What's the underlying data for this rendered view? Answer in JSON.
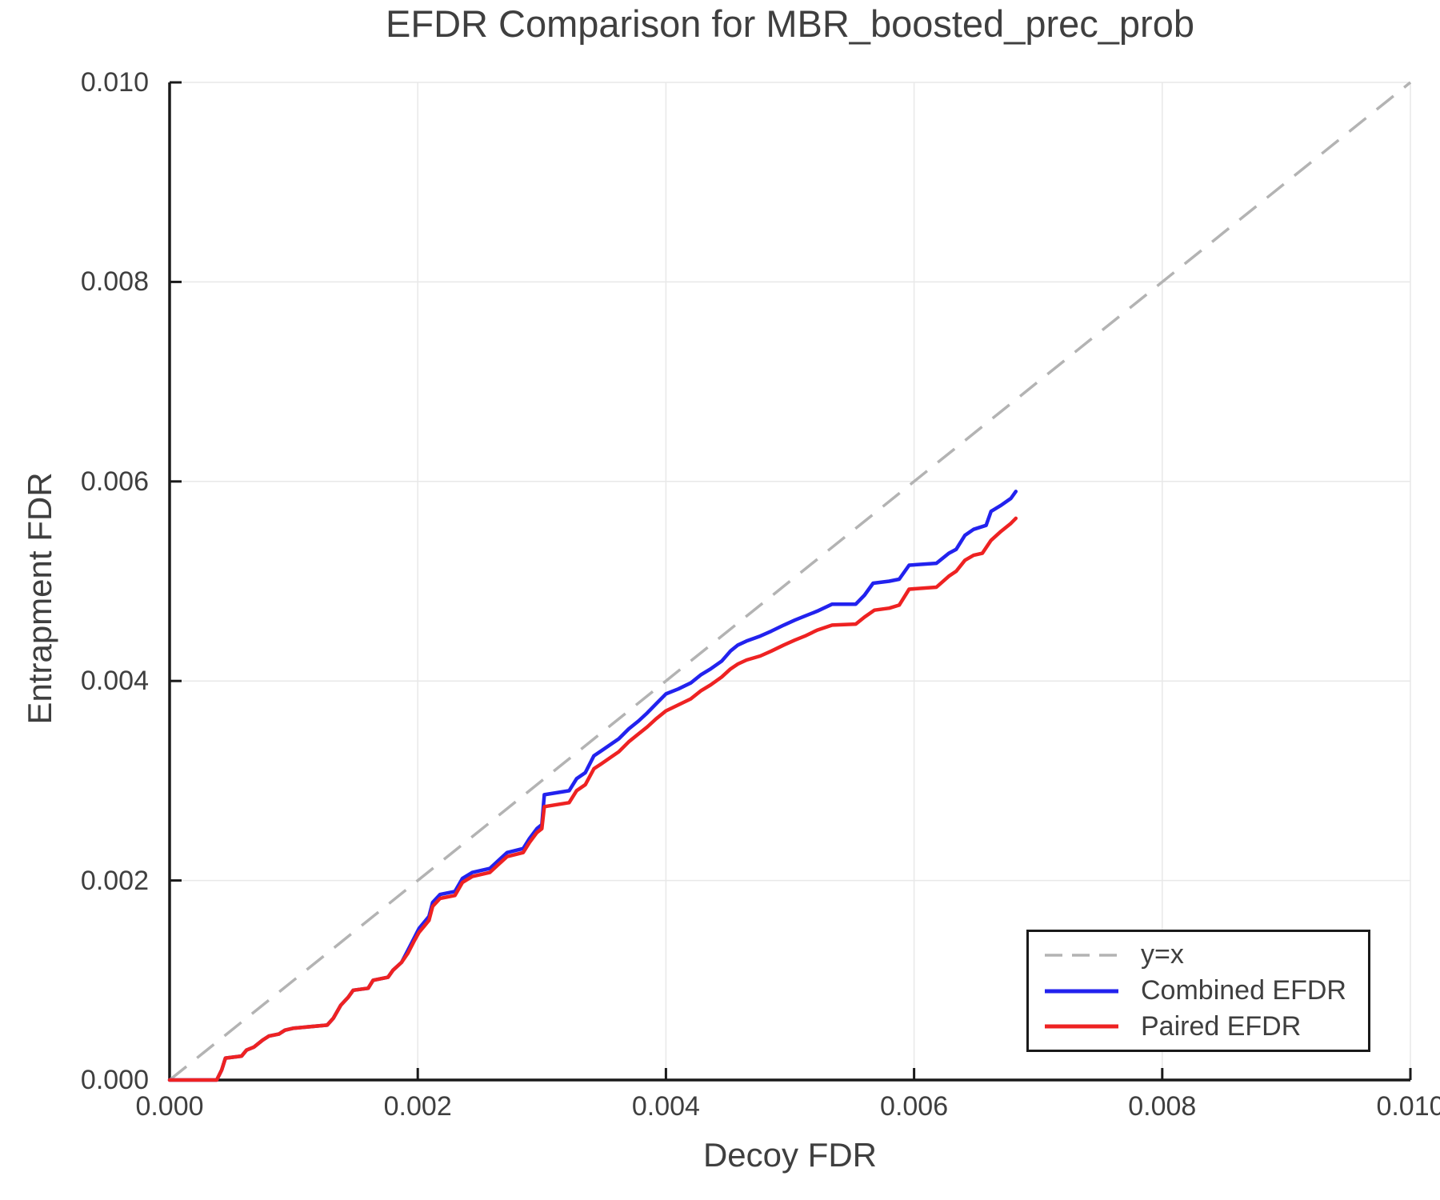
{
  "chart_data": {
    "type": "line",
    "title": "EFDR Comparison for MBR_boosted_prec_prob",
    "xlabel": "Decoy FDR",
    "ylabel": "Entrapment FDR",
    "xlim": [
      0.0,
      0.01
    ],
    "ylim": [
      0.0,
      0.01
    ],
    "x_ticks": [
      0.0,
      0.002,
      0.004,
      0.006,
      0.008,
      0.01
    ],
    "x_tick_labels": [
      "0.000",
      "0.002",
      "0.004",
      "0.006",
      "0.008",
      "0.010"
    ],
    "y_ticks": [
      0.0,
      0.002,
      0.004,
      0.006,
      0.008,
      0.01
    ],
    "y_tick_labels": [
      "0.000",
      "0.002",
      "0.004",
      "0.006",
      "0.008",
      "0.010"
    ],
    "grid": true,
    "legend_position": "lower right",
    "reference_line": {
      "label": "y=x",
      "style": "dashed",
      "color": "#b3b3b3",
      "from": [
        0.0,
        0.0
      ],
      "to": [
        0.01,
        0.01
      ]
    },
    "series": [
      {
        "name": "Combined EFDR",
        "color": "#2222ee",
        "points": [
          [
            0.0,
            0.0
          ],
          [
            0.00038,
            0.0
          ],
          [
            0.00042,
            0.0001
          ],
          [
            0.00045,
            0.00022
          ],
          [
            0.00058,
            0.00024
          ],
          [
            0.00062,
            0.0003
          ],
          [
            0.00068,
            0.00033
          ],
          [
            0.00075,
            0.0004
          ],
          [
            0.0008,
            0.00044
          ],
          [
            0.00088,
            0.00046
          ],
          [
            0.00093,
            0.0005
          ],
          [
            0.001,
            0.00052
          ],
          [
            0.00127,
            0.00055
          ],
          [
            0.00132,
            0.00062
          ],
          [
            0.00138,
            0.00075
          ],
          [
            0.00144,
            0.00083
          ],
          [
            0.00148,
            0.0009
          ],
          [
            0.0016,
            0.00092
          ],
          [
            0.00164,
            0.001
          ],
          [
            0.00176,
            0.00103
          ],
          [
            0.0018,
            0.0011
          ],
          [
            0.00187,
            0.00118
          ],
          [
            0.00192,
            0.0013
          ],
          [
            0.00197,
            0.00142
          ],
          [
            0.00201,
            0.00152
          ],
          [
            0.00205,
            0.00158
          ],
          [
            0.00209,
            0.00164
          ],
          [
            0.00212,
            0.00178
          ],
          [
            0.00218,
            0.00186
          ],
          [
            0.0023,
            0.00189
          ],
          [
            0.00236,
            0.00202
          ],
          [
            0.00244,
            0.00208
          ],
          [
            0.00258,
            0.00212
          ],
          [
            0.00265,
            0.0022
          ],
          [
            0.00272,
            0.00228
          ],
          [
            0.00285,
            0.00232
          ],
          [
            0.0029,
            0.00242
          ],
          [
            0.00296,
            0.00252
          ],
          [
            0.003,
            0.00256
          ],
          [
            0.00302,
            0.00286
          ],
          [
            0.00322,
            0.0029
          ],
          [
            0.00328,
            0.00302
          ],
          [
            0.00335,
            0.00308
          ],
          [
            0.00342,
            0.00325
          ],
          [
            0.00348,
            0.0033
          ],
          [
            0.00355,
            0.00336
          ],
          [
            0.00362,
            0.00342
          ],
          [
            0.0037,
            0.00352
          ],
          [
            0.00378,
            0.0036
          ],
          [
            0.00385,
            0.00368
          ],
          [
            0.00392,
            0.00377
          ],
          [
            0.004,
            0.00387
          ],
          [
            0.0041,
            0.00392
          ],
          [
            0.0042,
            0.00398
          ],
          [
            0.00428,
            0.00406
          ],
          [
            0.00436,
            0.00412
          ],
          [
            0.00445,
            0.0042
          ],
          [
            0.00452,
            0.0043
          ],
          [
            0.00458,
            0.00436
          ],
          [
            0.00465,
            0.0044
          ],
          [
            0.00476,
            0.00445
          ],
          [
            0.00485,
            0.0045
          ],
          [
            0.00495,
            0.00456
          ],
          [
            0.00504,
            0.00461
          ],
          [
            0.00512,
            0.00465
          ],
          [
            0.00522,
            0.0047
          ],
          [
            0.00534,
            0.00477
          ],
          [
            0.00553,
            0.00477
          ],
          [
            0.0056,
            0.00486
          ],
          [
            0.00567,
            0.00498
          ],
          [
            0.0058,
            0.005
          ],
          [
            0.00588,
            0.00502
          ],
          [
            0.00596,
            0.00516
          ],
          [
            0.00618,
            0.00518
          ],
          [
            0.00628,
            0.00528
          ],
          [
            0.00634,
            0.00532
          ],
          [
            0.00641,
            0.00546
          ],
          [
            0.00648,
            0.00552
          ],
          [
            0.00658,
            0.00556
          ],
          [
            0.00662,
            0.0057
          ],
          [
            0.0067,
            0.00576
          ],
          [
            0.00678,
            0.00583
          ],
          [
            0.00682,
            0.0059
          ]
        ]
      },
      {
        "name": "Paired EFDR",
        "color": "#ee2222",
        "points": [
          [
            0.0,
            0.0
          ],
          [
            0.00038,
            0.0
          ],
          [
            0.00042,
            0.0001
          ],
          [
            0.00045,
            0.00022
          ],
          [
            0.00058,
            0.00024
          ],
          [
            0.00062,
            0.0003
          ],
          [
            0.00068,
            0.00033
          ],
          [
            0.00075,
            0.0004
          ],
          [
            0.0008,
            0.00044
          ],
          [
            0.00088,
            0.00046
          ],
          [
            0.00093,
            0.0005
          ],
          [
            0.001,
            0.00052
          ],
          [
            0.00127,
            0.00055
          ],
          [
            0.00132,
            0.00062
          ],
          [
            0.00138,
            0.00075
          ],
          [
            0.00144,
            0.00083
          ],
          [
            0.00148,
            0.0009
          ],
          [
            0.0016,
            0.00092
          ],
          [
            0.00164,
            0.001
          ],
          [
            0.00176,
            0.00103
          ],
          [
            0.0018,
            0.0011
          ],
          [
            0.00187,
            0.00118
          ],
          [
            0.00192,
            0.00127
          ],
          [
            0.00197,
            0.00139
          ],
          [
            0.00201,
            0.00148
          ],
          [
            0.00205,
            0.00154
          ],
          [
            0.00209,
            0.0016
          ],
          [
            0.00212,
            0.00174
          ],
          [
            0.00218,
            0.00182
          ],
          [
            0.0023,
            0.00185
          ],
          [
            0.00236,
            0.00198
          ],
          [
            0.00244,
            0.00204
          ],
          [
            0.00258,
            0.00208
          ],
          [
            0.00265,
            0.00216
          ],
          [
            0.00272,
            0.00224
          ],
          [
            0.00285,
            0.00228
          ],
          [
            0.0029,
            0.00238
          ],
          [
            0.00296,
            0.00248
          ],
          [
            0.003,
            0.00252
          ],
          [
            0.00302,
            0.00274
          ],
          [
            0.00322,
            0.00278
          ],
          [
            0.00328,
            0.0029
          ],
          [
            0.00335,
            0.00296
          ],
          [
            0.00342,
            0.00312
          ],
          [
            0.00348,
            0.00317
          ],
          [
            0.00355,
            0.00323
          ],
          [
            0.00362,
            0.00329
          ],
          [
            0.0037,
            0.00339
          ],
          [
            0.00378,
            0.00347
          ],
          [
            0.00385,
            0.00354
          ],
          [
            0.00392,
            0.00362
          ],
          [
            0.004,
            0.0037
          ],
          [
            0.0041,
            0.00376
          ],
          [
            0.0042,
            0.00382
          ],
          [
            0.00428,
            0.0039
          ],
          [
            0.00436,
            0.00396
          ],
          [
            0.00445,
            0.00404
          ],
          [
            0.00452,
            0.00412
          ],
          [
            0.00458,
            0.00417
          ],
          [
            0.00465,
            0.00421
          ],
          [
            0.00476,
            0.00425
          ],
          [
            0.00485,
            0.0043
          ],
          [
            0.00495,
            0.00436
          ],
          [
            0.00504,
            0.00441
          ],
          [
            0.00512,
            0.00445
          ],
          [
            0.00522,
            0.00451
          ],
          [
            0.00534,
            0.00456
          ],
          [
            0.00553,
            0.00457
          ],
          [
            0.0056,
            0.00464
          ],
          [
            0.00568,
            0.00471
          ],
          [
            0.0058,
            0.00473
          ],
          [
            0.00588,
            0.00476
          ],
          [
            0.00596,
            0.00492
          ],
          [
            0.00618,
            0.00494
          ],
          [
            0.00628,
            0.00505
          ],
          [
            0.00634,
            0.0051
          ],
          [
            0.00641,
            0.00521
          ],
          [
            0.00648,
            0.00526
          ],
          [
            0.00655,
            0.00528
          ],
          [
            0.00662,
            0.00541
          ],
          [
            0.0067,
            0.0055
          ],
          [
            0.00678,
            0.00558
          ],
          [
            0.00682,
            0.00563
          ]
        ]
      }
    ]
  },
  "colors": {
    "background": "#ffffff",
    "grid": "#e8e8e8",
    "spine": "#1a1a1a",
    "tick": "#1a1a1a",
    "text": "#3f3f3f",
    "reference_dash": "#b3b3b3",
    "combined_line": "#2222ee",
    "paired_line": "#ee2222",
    "legend_border": "#1a1a1a"
  }
}
